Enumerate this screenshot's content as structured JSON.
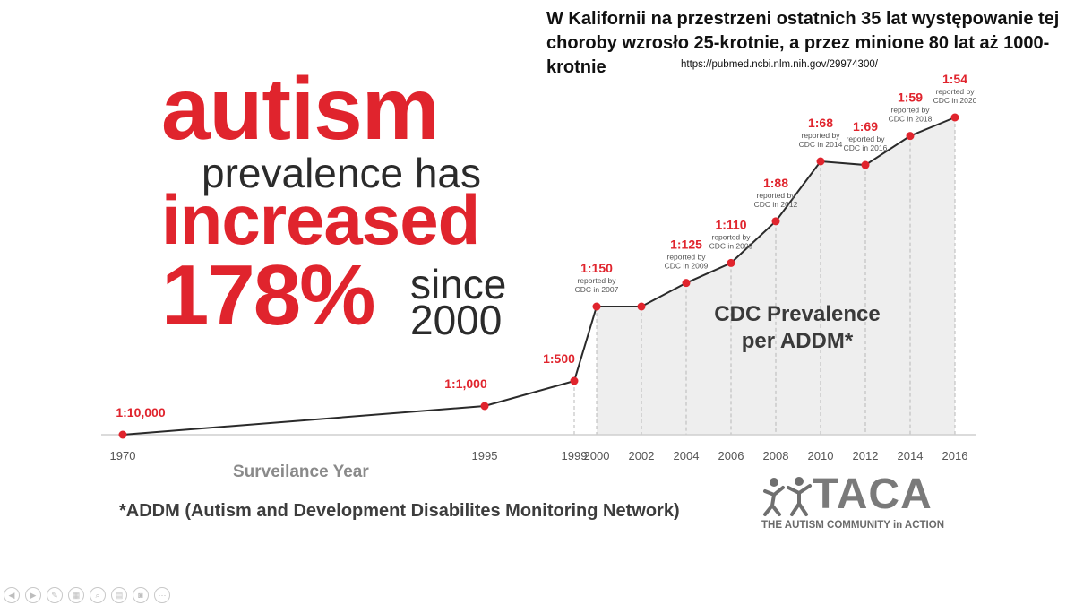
{
  "slide": {
    "title": "W Kalifornii na przestrzeni ostatnich 35 lat występowanie tej choroby wzrosło 25-krotnie, a przez minione 80 lat aż 1000-krotnie",
    "source_url": "https://pubmed.ncbi.nlm.nih.gov/29974300/"
  },
  "infographic": {
    "headline_word": "autism",
    "headline_line2": "prevalence has",
    "headline_line3": "increased",
    "headline_pct": "178%",
    "headline_since": "since",
    "headline_year": "2000",
    "footnote": "*ADDM (Autism and Development Disabilites Monitoring Network)",
    "region_label_line1": "CDC Prevalence",
    "region_label_line2": "per ADDM*",
    "brand_name": "TACA",
    "brand_tagline": "THE AUTISM COMMUNITY in ACTION"
  },
  "colors": {
    "accent": "#e0242d",
    "text_dark": "#2b2b2b",
    "axis_gray": "#8a8a8a",
    "shade": "#eeeeee"
  },
  "chart_data": {
    "type": "line",
    "xlabel": "Surveilance Year",
    "x_ticks": [
      "1970",
      "1995",
      "1999",
      "2000",
      "2002",
      "2004",
      "2006",
      "2008",
      "2010",
      "2012",
      "2014",
      "2016"
    ],
    "points": [
      {
        "x": "1970",
        "label": "1:10,000",
        "note": ""
      },
      {
        "x": "1995",
        "label": "1:1,000",
        "note": ""
      },
      {
        "x": "1999",
        "label": "1:500",
        "note": ""
      },
      {
        "x": "2000",
        "label": "1:150",
        "note": "reported by CDC in 2007"
      },
      {
        "x": "2002",
        "label": "",
        "note": ""
      },
      {
        "x": "2004",
        "label": "1:125",
        "note": "reported by CDC in 2009"
      },
      {
        "x": "2006",
        "label": "1:110",
        "note": "reported by CDC in 2009"
      },
      {
        "x": "2008",
        "label": "1:88",
        "note": "reported by CDC in 2012"
      },
      {
        "x": "2010",
        "label": "1:68",
        "note": "reported by CDC in 2014"
      },
      {
        "x": "2012",
        "label": "1:69",
        "note": "reported by CDC in 2016"
      },
      {
        "x": "2014",
        "label": "1:59",
        "note": "reported by CDC in 2018"
      },
      {
        "x": "2016",
        "label": "1:54",
        "note": "reported by CDC in 2020"
      }
    ],
    "values_per_1000": [
      0.1,
      1,
      2,
      6.7,
      6.7,
      8,
      9.1,
      11.4,
      14.7,
      14.5,
      16.9,
      18.5
    ],
    "shaded_region": [
      "2000",
      "2016"
    ]
  },
  "toolbar": {
    "buttons": [
      {
        "icon": "previous-icon",
        "glyph": "◀"
      },
      {
        "icon": "next-icon",
        "glyph": "▶"
      },
      {
        "icon": "pen-icon",
        "glyph": "✎"
      },
      {
        "icon": "slides-icon",
        "glyph": "▦"
      },
      {
        "icon": "zoom-icon",
        "glyph": "⌕"
      },
      {
        "icon": "subtitles-icon",
        "glyph": "▤"
      },
      {
        "icon": "camera-icon",
        "glyph": "◙"
      },
      {
        "icon": "more-icon",
        "glyph": "⋯"
      }
    ]
  }
}
